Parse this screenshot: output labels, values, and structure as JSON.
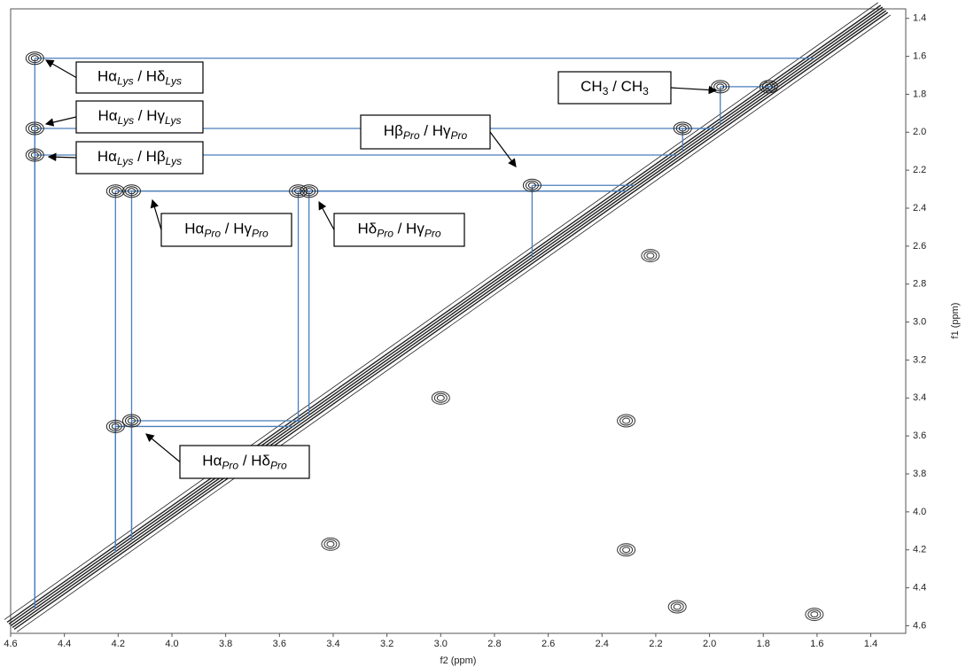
{
  "chart_data": {
    "type": "nmr-2d",
    "x_label": "f2 (ppm)",
    "y_label": "f1 (ppm)",
    "xlim": [
      4.6,
      1.27
    ],
    "ylim": [
      1.35,
      4.64
    ],
    "xticks": [
      4.6,
      4.4,
      4.2,
      {
        "value": 4,
        "label": "4.0"
      },
      3.8,
      3.6,
      3.4,
      3.2,
      {
        "value": 3,
        "label": "3.0"
      },
      2.8,
      2.6,
      2.4,
      2.2,
      {
        "value": 2,
        "label": "2.0"
      },
      1.8,
      1.6,
      1.4
    ],
    "yticks": [
      1.4,
      1.6,
      1.8,
      {
        "value": 2,
        "label": "2.0"
      },
      2.2,
      2.4,
      2.6,
      2.8,
      {
        "value": 3,
        "label": "3.0"
      },
      3.2,
      3.4,
      3.6,
      3.8,
      {
        "value": 4,
        "label": "4.0"
      },
      4.2,
      4.4,
      4.6
    ],
    "series": [
      {
        "color": "#4a7ebb",
        "x": [
          4.51,
          4.51,
          4.51,
          4.21,
          4.15,
          3.53,
          3.49,
          2.66,
          4.21,
          4.15,
          2.1,
          1.96,
          1.78
        ],
        "values": [
          1.61,
          1.98,
          2.12,
          2.31,
          2.31,
          2.31,
          2.31,
          2.28,
          3.55,
          3.52,
          1.98,
          1.76,
          1.76
        ]
      },
      {
        "color": "#333333",
        "x": [
          1.61,
          2.31,
          2.31,
          3.41,
          2.22,
          2.12,
          3.0
        ],
        "values": [
          4.54,
          3.52,
          4.2,
          4.17,
          2.65,
          4.5,
          3.4
        ]
      }
    ],
    "annotations": [
      {
        "parts": [
          "Hα",
          "Lys",
          " / Hδ",
          "Lys"
        ]
      },
      {
        "parts": [
          "Hα",
          "Lys",
          " / Hγ",
          "Lys"
        ]
      },
      {
        "parts": [
          "Hα",
          "Lys",
          " / Hβ",
          "Lys"
        ]
      },
      {
        "parts": [
          "Hβ",
          "Pro",
          " / Hγ",
          "Pro"
        ]
      },
      {
        "parts": [
          "Hα",
          "Pro",
          " / Hγ",
          "Pro"
        ]
      },
      {
        "parts": [
          "Hδ",
          "Pro",
          " / Hγ",
          "Pro"
        ]
      },
      {
        "parts": [
          "Hα",
          "Pro",
          " / Hδ",
          "Pro"
        ]
      },
      {
        "parts": [
          "CH",
          "3",
          " / CH",
          "3"
        ]
      }
    ]
  }
}
